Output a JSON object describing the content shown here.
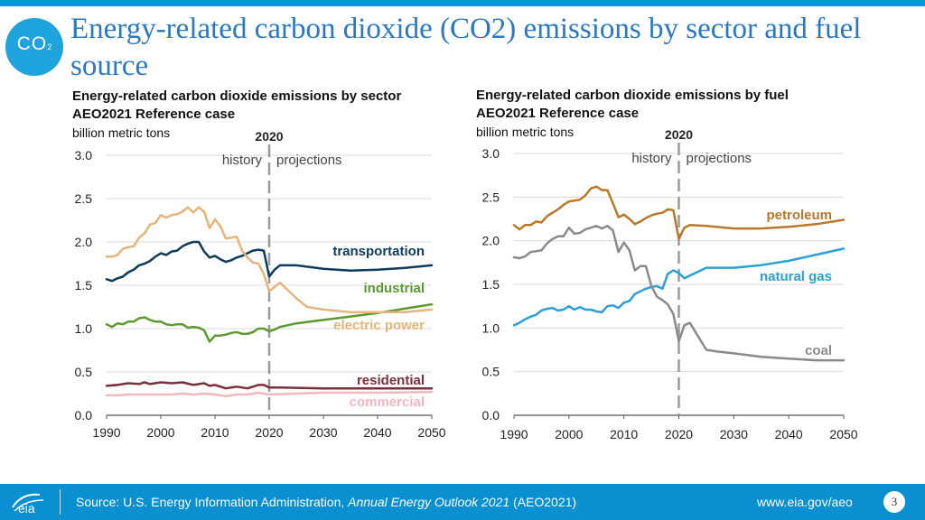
{
  "page": {
    "title": "Energy-related carbon dioxide (CO2) emissions by sector and fuel source",
    "logo_text": "CO",
    "logo_sub": "2"
  },
  "colors": {
    "accent": "#0096d6",
    "title": "#2a78bf",
    "transportation": "#0e3b5a",
    "industrial": "#5b9a2f",
    "electric_power": "#e4b47a",
    "residential": "#7a2f3c",
    "commercial": "#efb8c0",
    "petroleum": "#b8782a",
    "natural_gas": "#2aa0d6",
    "coal": "#8a8a8a"
  },
  "footer": {
    "source_prefix": "Source: U.S. Energy Information Administration, ",
    "source_italic": "Annual Energy Outlook 2021",
    "source_suffix": " (AEO2021)",
    "url": "www.eia.gov/aeo",
    "page_number": "3",
    "logo_text": "eia"
  },
  "chart_data": [
    {
      "type": "line",
      "title": "Energy-related carbon dioxide emissions by sector",
      "subtitle": "AEO2021 Reference case",
      "ylabel": "billion metric tons",
      "ylim": [
        0,
        3.0
      ],
      "xlim": [
        1990,
        2050
      ],
      "yticks": [
        "0.0",
        "0.5",
        "1.0",
        "1.5",
        "2.0",
        "2.5",
        "3.0"
      ],
      "xticks": [
        "1990",
        "2000",
        "2010",
        "2020",
        "2030",
        "2040",
        "2050"
      ],
      "divider": {
        "x": 2020,
        "label": "2020",
        "left": "history",
        "right": "projections"
      },
      "series": [
        {
          "name": "transportation",
          "color": "#0e3b5a",
          "x": [
            1990,
            1991,
            1992,
            1993,
            1994,
            1995,
            1996,
            1997,
            1998,
            1999,
            2000,
            2001,
            2002,
            2003,
            2004,
            2005,
            2006,
            2007,
            2008,
            2009,
            2010,
            2011,
            2012,
            2013,
            2014,
            2015,
            2016,
            2017,
            2018,
            2019,
            2020,
            2021,
            2022,
            2025,
            2030,
            2035,
            2040,
            2045,
            2050
          ],
          "y": [
            1.57,
            1.55,
            1.58,
            1.6,
            1.65,
            1.68,
            1.73,
            1.75,
            1.78,
            1.83,
            1.87,
            1.85,
            1.89,
            1.9,
            1.95,
            1.98,
            2.0,
            2.0,
            1.89,
            1.82,
            1.84,
            1.8,
            1.77,
            1.79,
            1.82,
            1.84,
            1.87,
            1.9,
            1.91,
            1.9,
            1.6,
            1.68,
            1.73,
            1.73,
            1.69,
            1.67,
            1.68,
            1.7,
            1.73
          ]
        },
        {
          "name": "industrial",
          "color": "#5b9a2f",
          "x": [
            1990,
            1991,
            1992,
            1993,
            1994,
            1995,
            1996,
            1997,
            1998,
            1999,
            2000,
            2001,
            2002,
            2003,
            2004,
            2005,
            2006,
            2007,
            2008,
            2009,
            2010,
            2011,
            2012,
            2013,
            2014,
            2015,
            2016,
            2017,
            2018,
            2019,
            2020,
            2021,
            2022,
            2025,
            2030,
            2035,
            2040,
            2045,
            2050
          ],
          "y": [
            1.05,
            1.02,
            1.06,
            1.05,
            1.08,
            1.08,
            1.12,
            1.13,
            1.1,
            1.08,
            1.08,
            1.05,
            1.04,
            1.05,
            1.05,
            1.01,
            1.02,
            1.01,
            0.98,
            0.85,
            0.92,
            0.92,
            0.93,
            0.95,
            0.96,
            0.94,
            0.94,
            0.96,
            1.0,
            1.0,
            0.97,
            0.99,
            1.02,
            1.06,
            1.1,
            1.14,
            1.18,
            1.23,
            1.28
          ]
        },
        {
          "name": "electric power",
          "color": "#e4b47a",
          "x": [
            1990,
            1991,
            1992,
            1993,
            1994,
            1995,
            1996,
            1997,
            1998,
            1999,
            2000,
            2001,
            2002,
            2003,
            2004,
            2005,
            2006,
            2007,
            2008,
            2009,
            2010,
            2011,
            2012,
            2013,
            2014,
            2015,
            2016,
            2017,
            2018,
            2019,
            2020,
            2021,
            2022,
            2025,
            2027,
            2030,
            2035,
            2040,
            2045,
            2050
          ],
          "y": [
            1.83,
            1.83,
            1.85,
            1.92,
            1.94,
            1.95,
            2.05,
            2.1,
            2.2,
            2.22,
            2.31,
            2.28,
            2.31,
            2.32,
            2.35,
            2.4,
            2.34,
            2.4,
            2.35,
            2.16,
            2.26,
            2.18,
            2.04,
            2.05,
            2.06,
            1.9,
            1.82,
            1.76,
            1.75,
            1.63,
            1.43,
            1.48,
            1.53,
            1.35,
            1.25,
            1.22,
            1.19,
            1.19,
            1.19,
            1.22
          ]
        },
        {
          "name": "residential",
          "color": "#7a2f3c",
          "x": [
            1990,
            1992,
            1994,
            1996,
            1997,
            1998,
            2000,
            2002,
            2004,
            2006,
            2008,
            2009,
            2010,
            2012,
            2014,
            2016,
            2018,
            2019,
            2020,
            2022,
            2030,
            2040,
            2050
          ],
          "y": [
            0.34,
            0.35,
            0.37,
            0.36,
            0.38,
            0.36,
            0.38,
            0.37,
            0.38,
            0.35,
            0.37,
            0.34,
            0.35,
            0.31,
            0.33,
            0.31,
            0.35,
            0.35,
            0.32,
            0.32,
            0.31,
            0.31,
            0.31
          ]
        },
        {
          "name": "commercial",
          "color": "#efb8c0",
          "x": [
            1990,
            1992,
            1994,
            1996,
            1998,
            2000,
            2002,
            2004,
            2006,
            2008,
            2010,
            2012,
            2014,
            2016,
            2018,
            2019,
            2020,
            2025,
            2030,
            2040,
            2050
          ],
          "y": [
            0.23,
            0.23,
            0.24,
            0.24,
            0.24,
            0.24,
            0.24,
            0.25,
            0.24,
            0.25,
            0.24,
            0.22,
            0.24,
            0.24,
            0.26,
            0.25,
            0.24,
            0.25,
            0.26,
            0.26,
            0.27
          ]
        }
      ],
      "labels": [
        {
          "text": "transportation",
          "series": "transportation"
        },
        {
          "text": "industrial",
          "series": "industrial"
        },
        {
          "text": "electric power",
          "series": "electric power"
        },
        {
          "text": "residential",
          "series": "residential"
        },
        {
          "text": "commercial",
          "series": "commercial"
        }
      ]
    },
    {
      "type": "line",
      "title": "Energy-related carbon dioxide emissions by fuel",
      "subtitle": "AEO2021 Reference case",
      "ylabel": "billion metric tons",
      "ylim": [
        0,
        3.0
      ],
      "xlim": [
        1990,
        2050
      ],
      "yticks": [
        "0.0",
        "0.5",
        "1.0",
        "1.5",
        "2.0",
        "2.5",
        "3.0"
      ],
      "xticks": [
        "1990",
        "2000",
        "2010",
        "2020",
        "2030",
        "2040",
        "2050"
      ],
      "divider": {
        "x": 2020,
        "label": "2020",
        "left": "history",
        "right": "projections"
      },
      "series": [
        {
          "name": "petroleum",
          "color": "#b8782a",
          "x": [
            1990,
            1991,
            1992,
            1993,
            1994,
            1995,
            1996,
            1997,
            1998,
            1999,
            2000,
            2001,
            2002,
            2003,
            2004,
            2005,
            2006,
            2007,
            2008,
            2009,
            2010,
            2011,
            2012,
            2013,
            2014,
            2015,
            2016,
            2017,
            2018,
            2019,
            2020,
            2021,
            2022,
            2025,
            2030,
            2035,
            2040,
            2045,
            2050
          ],
          "y": [
            2.18,
            2.13,
            2.18,
            2.18,
            2.22,
            2.21,
            2.28,
            2.32,
            2.36,
            2.41,
            2.45,
            2.46,
            2.47,
            2.52,
            2.6,
            2.62,
            2.58,
            2.58,
            2.43,
            2.27,
            2.3,
            2.25,
            2.19,
            2.22,
            2.26,
            2.29,
            2.31,
            2.32,
            2.36,
            2.35,
            2.02,
            2.15,
            2.18,
            2.17,
            2.14,
            2.14,
            2.16,
            2.19,
            2.24
          ]
        },
        {
          "name": "natural gas",
          "color": "#2aa0d6",
          "x": [
            1990,
            1991,
            1992,
            1993,
            1994,
            1995,
            1996,
            1997,
            1998,
            1999,
            2000,
            2001,
            2002,
            2003,
            2004,
            2005,
            2006,
            2007,
            2008,
            2009,
            2010,
            2011,
            2012,
            2013,
            2014,
            2015,
            2016,
            2017,
            2018,
            2019,
            2020,
            2021,
            2022,
            2025,
            2030,
            2035,
            2040,
            2045,
            2050
          ],
          "y": [
            1.03,
            1.06,
            1.1,
            1.13,
            1.15,
            1.2,
            1.22,
            1.23,
            1.2,
            1.21,
            1.25,
            1.21,
            1.24,
            1.21,
            1.21,
            1.19,
            1.18,
            1.25,
            1.26,
            1.23,
            1.29,
            1.31,
            1.39,
            1.42,
            1.45,
            1.47,
            1.48,
            1.45,
            1.62,
            1.66,
            1.63,
            1.57,
            1.6,
            1.69,
            1.69,
            1.72,
            1.77,
            1.84,
            1.91
          ]
        },
        {
          "name": "coal",
          "color": "#8a8a8a",
          "x": [
            1990,
            1991,
            1992,
            1993,
            1994,
            1995,
            1996,
            1997,
            1998,
            1999,
            2000,
            2001,
            2002,
            2003,
            2004,
            2005,
            2006,
            2007,
            2008,
            2009,
            2010,
            2011,
            2012,
            2013,
            2014,
            2015,
            2016,
            2017,
            2018,
            2019,
            2020,
            2021,
            2022,
            2025,
            2027,
            2030,
            2035,
            2040,
            2045,
            2050
          ],
          "y": [
            1.81,
            1.8,
            1.82,
            1.87,
            1.88,
            1.89,
            1.97,
            2.02,
            2.05,
            2.05,
            2.15,
            2.08,
            2.09,
            2.13,
            2.15,
            2.17,
            2.14,
            2.17,
            2.12,
            1.87,
            1.98,
            1.89,
            1.66,
            1.71,
            1.71,
            1.48,
            1.36,
            1.32,
            1.27,
            1.16,
            0.85,
            1.03,
            1.06,
            0.75,
            0.73,
            0.71,
            0.67,
            0.65,
            0.63,
            0.63
          ]
        }
      ],
      "labels": [
        {
          "text": "petroleum",
          "series": "petroleum"
        },
        {
          "text": "natural gas",
          "series": "natural gas"
        },
        {
          "text": "coal",
          "series": "coal"
        }
      ]
    }
  ]
}
